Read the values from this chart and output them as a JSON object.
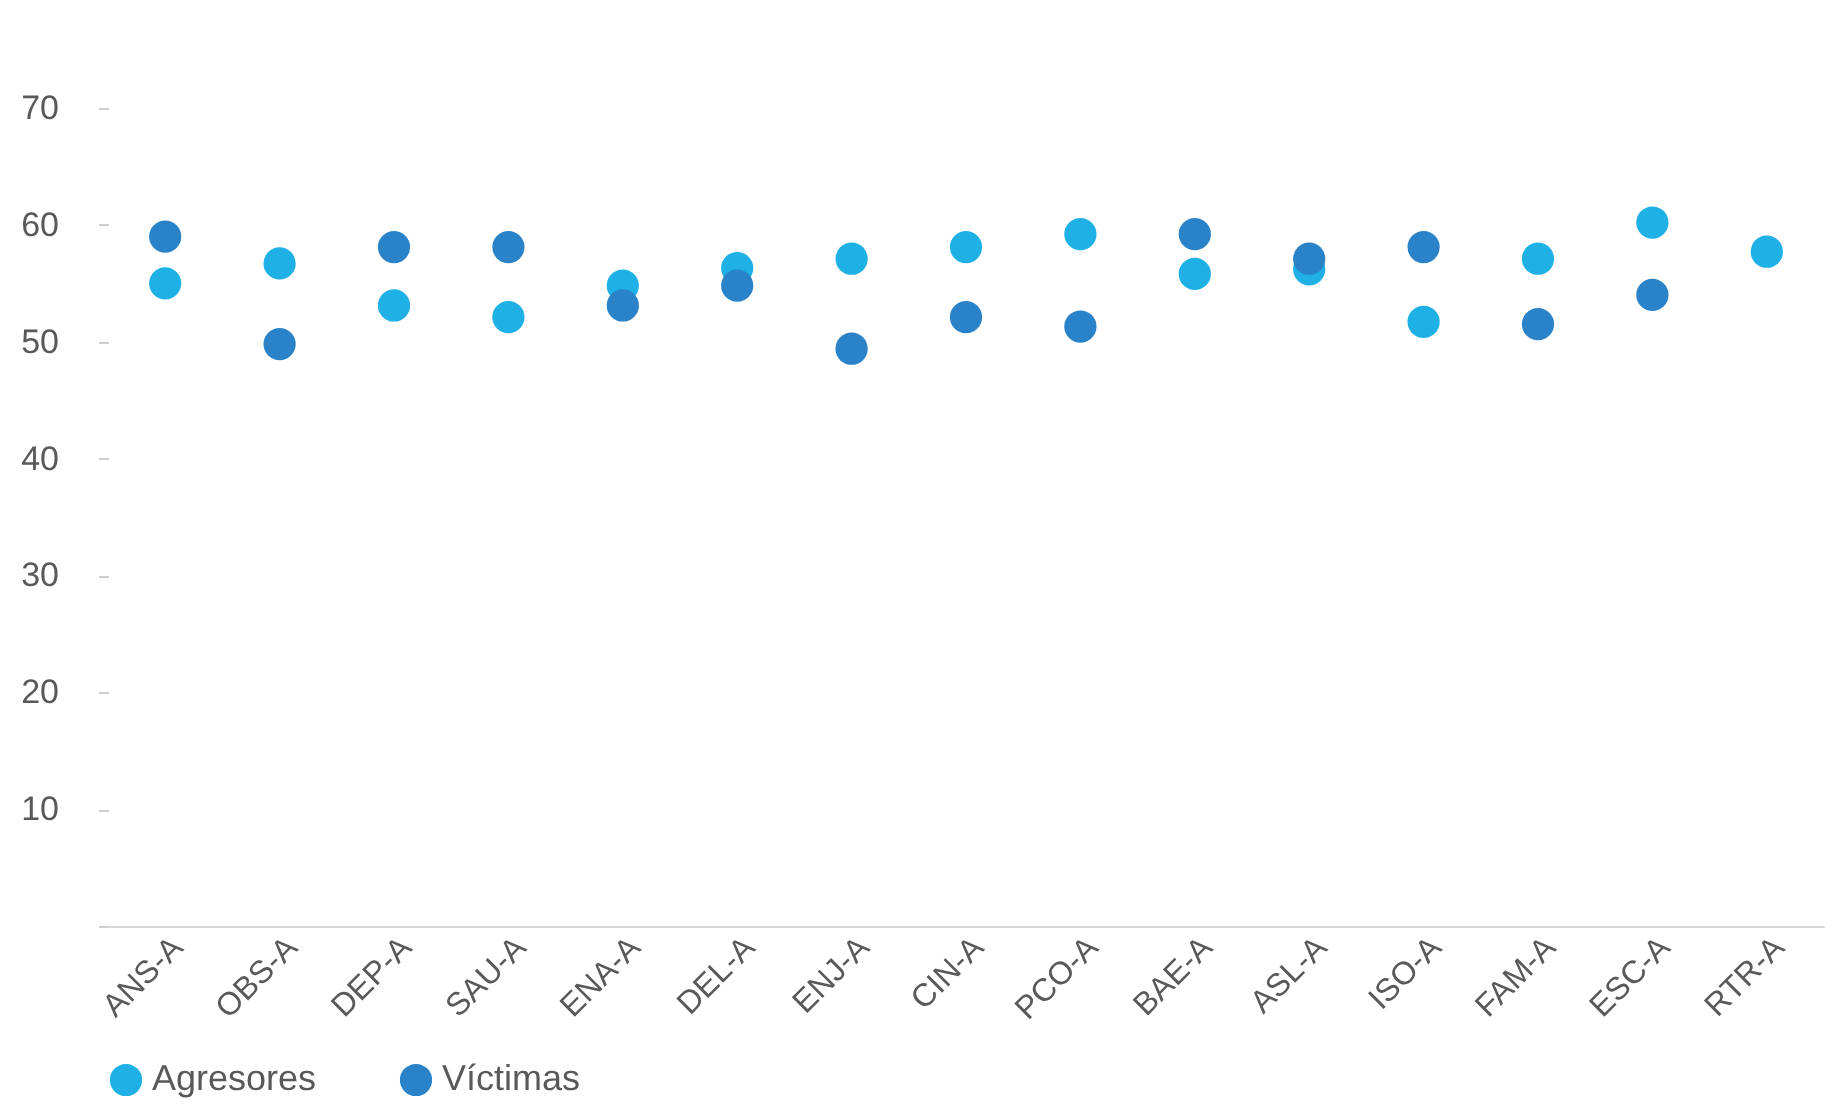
{
  "chart_data": {
    "type": "scatter",
    "categories": [
      "ANS-A",
      "OBS-A",
      "DEP-A",
      "SAU-A",
      "ENA-A",
      "DEL-A",
      "ENJ-A",
      "CIN-A",
      "PCO-A",
      "BAE-A",
      "ASL-A",
      "ISO-A",
      "FAM-A",
      "ESC-A",
      "RTR-A"
    ],
    "series": [
      {
        "name": "Agresores",
        "color": "#1fb0e6",
        "values": [
          55,
          56.7,
          53.1,
          52.1,
          54.8,
          56.3,
          57.1,
          58.1,
          59.2,
          55.8,
          56.2,
          51.7,
          57.1,
          60.2,
          57.7
        ]
      },
      {
        "name": "Víctimas",
        "color": "#2a83c9",
        "values": [
          59,
          49.8,
          58.1,
          58.1,
          53.1,
          54.8,
          49.4,
          52.1,
          51.3,
          59.2,
          57.1,
          58.1,
          51.5,
          54.0,
          null
        ]
      }
    ],
    "ylim": [
      0,
      70
    ],
    "yticks": [
      {
        "value": 0,
        "label": null
      },
      10,
      20,
      30,
      40,
      50,
      60,
      70
    ],
    "grid": false,
    "legend": "bottom",
    "marker": "circle"
  }
}
